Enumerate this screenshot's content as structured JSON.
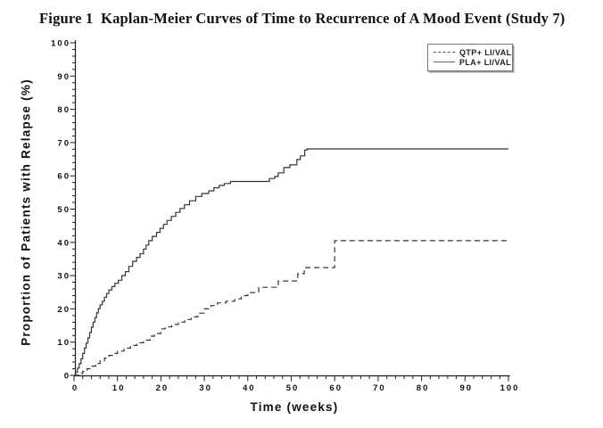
{
  "figure": {
    "title": "Figure 1  Kaplan-Meier Curves of Time to Recurrence of A Mood Event (Study 7)"
  },
  "legend": {
    "items": [
      {
        "label": "QTP+ LI/VAL",
        "style": "dashed"
      },
      {
        "label": "PLA+ LI/VAL",
        "style": "solid"
      }
    ]
  },
  "chart_data": {
    "type": "line",
    "subtype": "kaplan-meier-step",
    "title": "Figure 1  Kaplan-Meier Curves of Time to Recurrence of A Mood Event (Study 7)",
    "xlabel": "Time (weeks)",
    "ylabel": "Proportion of Patients with Relapse (%)",
    "xlim": [
      0,
      100
    ],
    "ylim": [
      0,
      100
    ],
    "xticks": [
      0,
      10,
      20,
      30,
      40,
      50,
      60,
      70,
      80,
      90,
      100
    ],
    "yticks": [
      0,
      10,
      20,
      30,
      40,
      50,
      60,
      70,
      80,
      90,
      100
    ],
    "minor_tick_step": 2,
    "grid": false,
    "legend_position": "top-right",
    "line_color": "#333333",
    "series": [
      {
        "name": "PLA+ LI/VAL",
        "dash": false,
        "x": [
          0,
          0.4,
          0.8,
          1.2,
          1.6,
          2,
          2.4,
          2.8,
          3.2,
          3.6,
          4,
          4.4,
          4.8,
          5.2,
          5.6,
          6,
          6.5,
          7,
          7.5,
          8,
          8.7,
          9.4,
          10.2,
          11,
          11.8,
          12.6,
          13.5,
          14.4,
          15.2,
          16,
          16.6,
          17.2,
          18,
          19,
          19.8,
          20.6,
          21.4,
          22.4,
          23.4,
          24.4,
          25.4,
          26.6,
          28,
          29.4,
          31,
          32.2,
          33.4,
          34.6,
          36,
          45,
          46.2,
          47,
          48.3,
          49.7,
          51.3,
          52.1,
          53.1,
          53.7,
          100
        ],
        "y": [
          0,
          1,
          2.2,
          3.5,
          5,
          6.6,
          8.2,
          9.7,
          11.3,
          12.9,
          14.5,
          16,
          17.4,
          18.8,
          20.1,
          21.2,
          22.3,
          23.5,
          24.6,
          25.7,
          26.7,
          27.7,
          28.6,
          30,
          31.2,
          32.8,
          34.3,
          35.5,
          36.6,
          38,
          39.2,
          40.5,
          41.8,
          43,
          44.2,
          45.4,
          46.6,
          47.8,
          49,
          50.2,
          51.3,
          52.5,
          53.8,
          54.7,
          55.5,
          56.4,
          57.1,
          57.7,
          58.3,
          59.2,
          59.8,
          60.9,
          62.5,
          63.3,
          64.9,
          66,
          67.8,
          68.1,
          68.1
        ]
      },
      {
        "name": "QTP+ LI/VAL",
        "dash": true,
        "x": [
          0,
          1,
          2,
          3,
          4,
          5,
          6,
          7,
          8,
          9,
          10,
          11.5,
          13,
          14.5,
          16,
          17.5,
          18.5,
          20,
          21,
          22.5,
          24,
          25.5,
          27,
          28.5,
          30,
          31.5,
          33,
          35,
          37,
          38.5,
          40,
          42.5,
          47,
          51.5,
          53,
          60,
          100
        ],
        "y": [
          0,
          0.6,
          1.2,
          2,
          2.8,
          3.6,
          4.4,
          5.2,
          6,
          6.6,
          7.3,
          8.2,
          9,
          9.8,
          10.6,
          11.8,
          12.6,
          14,
          14.6,
          15.3,
          16,
          16.8,
          17.6,
          18.7,
          20,
          21,
          21.8,
          22.3,
          23,
          24,
          24.9,
          26.5,
          28.4,
          30.6,
          32.4,
          40.5,
          40.5
        ]
      }
    ]
  }
}
